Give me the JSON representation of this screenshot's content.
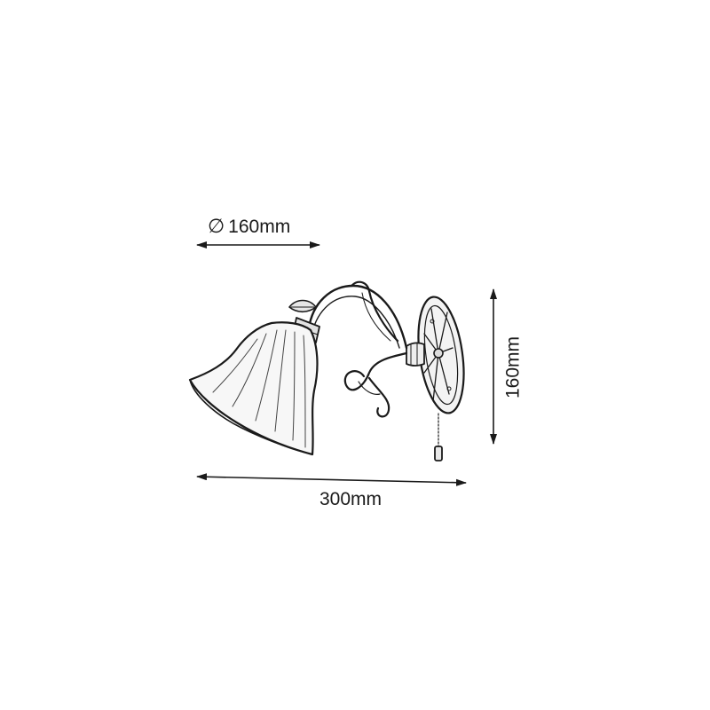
{
  "dimensions": {
    "diameter": {
      "symbol": "∅",
      "value": "160mm"
    },
    "height": "160mm",
    "width": "300mm"
  },
  "icons": [
    "arrow-left-icon",
    "arrow-right-icon",
    "arrow-up-icon",
    "arrow-down-icon"
  ],
  "colors": {
    "ink": "#1a1a1a",
    "background": "#ffffff"
  }
}
